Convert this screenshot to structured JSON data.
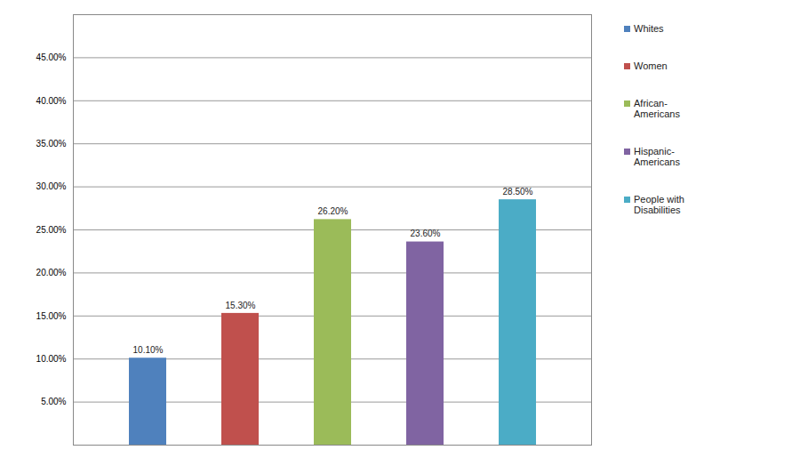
{
  "chart_data": {
    "type": "bar",
    "categories": [
      "Whites",
      "Women",
      "African-Americans",
      "Hispanic-Americans",
      "People with Disabilities"
    ],
    "values": [
      10.1,
      15.3,
      26.2,
      23.6,
      28.5
    ],
    "value_labels": [
      "10.10%",
      "15.30%",
      "26.20%",
      "23.60%",
      "28.50%"
    ],
    "colors": [
      "#4f81bd",
      "#c0504d",
      "#9bbb59",
      "#8064a2",
      "#4bacc6"
    ],
    "ylim": [
      0,
      50
    ],
    "yticks": [
      {
        "value": 5,
        "label": "5.00%"
      },
      {
        "value": 10,
        "label": "10.00%"
      },
      {
        "value": 15,
        "label": "15.00%"
      },
      {
        "value": 20,
        "label": "20.00%"
      },
      {
        "value": 25,
        "label": "25.00%"
      },
      {
        "value": 30,
        "label": "30.00%"
      },
      {
        "value": 35,
        "label": "35.00%"
      },
      {
        "value": 40,
        "label": "40.00%"
      },
      {
        "value": 45,
        "label": "45.00%"
      }
    ],
    "grid": true,
    "data_labels": true,
    "legend": "right",
    "tick_labels": "y"
  }
}
